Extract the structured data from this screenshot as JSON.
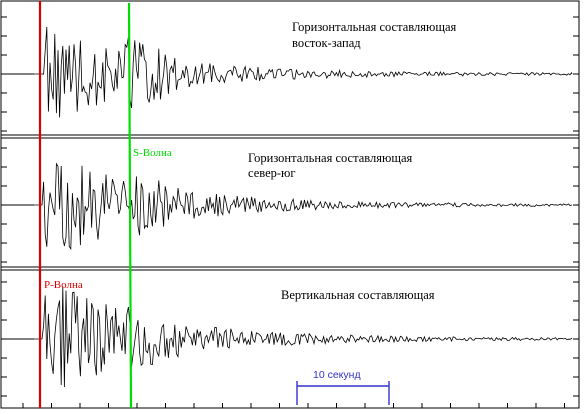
{
  "panels": [
    {
      "label_lines": [
        "Горизонтальная составляющая",
        "восток-запад"
      ]
    },
    {
      "label_lines": [
        "Горизонтальная составляющая",
        "север-юг"
      ]
    },
    {
      "label_lines": [
        "Вертикальная составляющая"
      ]
    }
  ],
  "markers": {
    "p_wave": {
      "label": "P-Волна",
      "color": "#dd0000"
    },
    "s_wave": {
      "label": "S-Волна",
      "color": "#00dd00"
    }
  },
  "scale_bar": {
    "label": "10 секунд",
    "color": "#3333cc"
  },
  "colors": {
    "trace": "#000000",
    "frame": "#000000",
    "background": "#ffffff"
  }
}
